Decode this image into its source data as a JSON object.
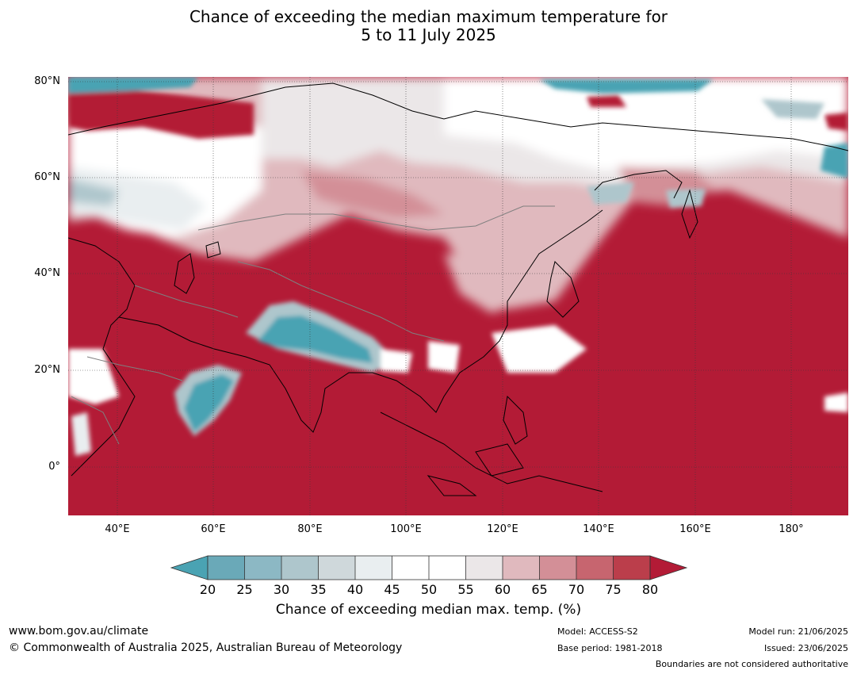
{
  "title": {
    "line1": "Chance of exceeding the median maximum temperature for",
    "line2": "5 to 11 July 2025"
  },
  "map": {
    "lat_labels": [
      "80°N",
      "60°N",
      "40°N",
      "20°N",
      "0°"
    ],
    "lon_labels": [
      "40°E",
      "60°E",
      "80°E",
      "100°E",
      "120°E",
      "140°E",
      "160°E",
      "180°"
    ],
    "extent": {
      "lon": [
        30,
        192
      ],
      "lat": [
        -10,
        81
      ]
    }
  },
  "colorbar": {
    "ticks": [
      "20",
      "25",
      "30",
      "35",
      "40",
      "45",
      "50",
      "55",
      "60",
      "65",
      "70",
      "75",
      "80"
    ],
    "colors": {
      "below": "#4aa3b3",
      "20-25": "#6aa9b8",
      "25-30": "#8cb8c4",
      "30-35": "#aec6cc",
      "35-40": "#cfd8db",
      "40-45": "#e9eef0",
      "45-50": "#ffffff",
      "50-55": "#ffffff",
      "55-60": "#ebe7e8",
      "60-65": "#e0b9be",
      "65-70": "#d38f97",
      "70-75": "#c7656f",
      "75-80": "#bb3e4b",
      "above": "#b31b36"
    },
    "label": "Chance of exceeding median max. temp. (%)"
  },
  "footer": {
    "website": "www.bom.gov.au/climate",
    "copyright": "© Commonwealth of Australia 2025, Australian Bureau of Meteorology",
    "model": "Model: ACCESS-S2",
    "base_period": "Base period: 1981-2018",
    "model_run": "Model run: 21/06/2025",
    "issued": "Issued: 23/06/2025",
    "boundaries": "Boundaries are not considered authoritative"
  }
}
